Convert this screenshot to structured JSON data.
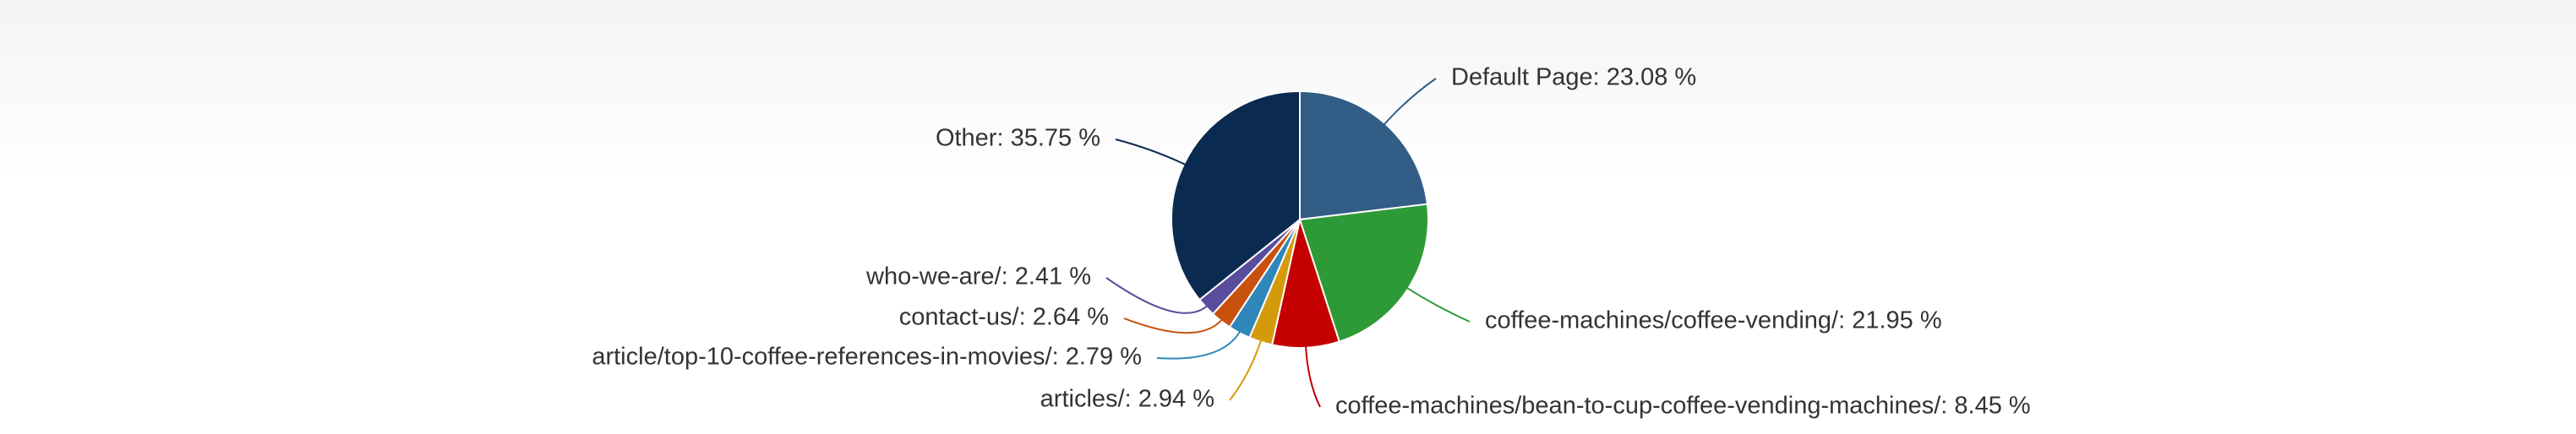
{
  "chart_data": {
    "type": "pie",
    "value_labels": [
      "Default Page: 23.08 %",
      "coffee-machines/coffee-vending/: 21.95 %",
      "coffee-machines/bean-to-cup-coffee-vending-machines/: 8.45 %",
      "articles/: 2.94 %",
      "article/top-10-coffee-references-in-movies/: 2.79 %",
      "contact-us/: 2.64 %",
      "who-we-are/: 2.41 %",
      "Other: 35.75 %"
    ],
    "values": [
      23.08,
      21.95,
      8.45,
      2.94,
      2.79,
      2.64,
      2.41,
      35.75
    ],
    "colors": [
      "#325d86",
      "#2e9a37",
      "#c40000",
      "#d49a0a",
      "#2f86b9",
      "#c8510d",
      "#5a4d9e",
      "#0b2a50"
    ]
  }
}
